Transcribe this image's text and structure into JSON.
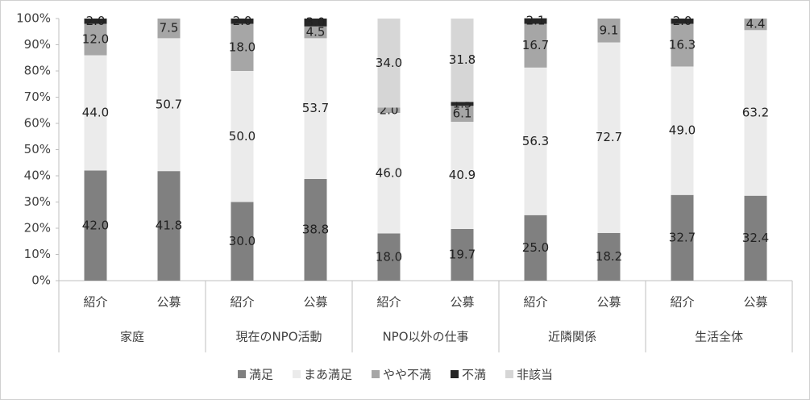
{
  "chart_data": {
    "type": "stacked-bar",
    "categories": [
      "紹介",
      "公募",
      "紹介",
      "公募",
      "紹介",
      "公募",
      "紹介",
      "公募",
      "紹介",
      "公募"
    ],
    "groups": [
      "家庭",
      "現在のNPO活動",
      "NPO以外の仕事",
      "近隣関係",
      "生活全体"
    ],
    "series": [
      {
        "name": "満足",
        "color": "#808080",
        "values": [
          42.0,
          41.8,
          30.0,
          38.8,
          18.0,
          19.7,
          25.0,
          18.2,
          32.7,
          32.4
        ],
        "value_labels": [
          "42.0",
          "41.8",
          "30.0",
          "38.8",
          "18.0",
          "19.7",
          "25.0",
          "18.2",
          "32.7",
          "32.4"
        ]
      },
      {
        "name": "まあ満足",
        "color": "#ebebeb",
        "values": [
          44.0,
          50.7,
          50.0,
          53.7,
          46.0,
          40.9,
          56.3,
          72.7,
          49.0,
          63.2
        ],
        "value_labels": [
          "44.0",
          "50.7",
          "50.0",
          "53.7",
          "46.0",
          "40.9",
          "56.3",
          "72.7",
          "49.0",
          "63.2"
        ]
      },
      {
        "name": "やや不満",
        "color": "#a6a6a6",
        "values": [
          12.0,
          7.5,
          18.0,
          4.5,
          2.0,
          6.1,
          16.7,
          9.1,
          16.3,
          4.4
        ],
        "value_labels": [
          "12.0",
          "7.5",
          "18.0",
          "4.5",
          "2.0",
          "6.1",
          "16.7",
          "9.1",
          "16.3",
          "4.4"
        ]
      },
      {
        "name": "不満",
        "color": "#262626",
        "values": [
          2.0,
          null,
          2.0,
          3.0,
          null,
          1.5,
          2.1,
          null,
          2.0,
          null
        ],
        "value_labels": [
          "2.0",
          null,
          "2.0",
          "3.0",
          null,
          "1.5",
          "2.1",
          null,
          "2.0",
          null
        ]
      },
      {
        "name": "非該当",
        "color": "#d6d6d6",
        "values": [
          null,
          null,
          null,
          null,
          34.0,
          31.8,
          null,
          null,
          null,
          null
        ],
        "value_labels": [
          null,
          null,
          null,
          null,
          "34.0",
          "31.8",
          null,
          null,
          null,
          null
        ]
      }
    ],
    "ylim": [
      0,
      100
    ],
    "yticks": [
      {
        "value": 0,
        "label": "0%"
      },
      {
        "value": 10,
        "label": "10%"
      },
      {
        "value": 20,
        "label": "20%"
      },
      {
        "value": 30,
        "label": "30%"
      },
      {
        "value": 40,
        "label": "40%"
      },
      {
        "value": 50,
        "label": "50%"
      },
      {
        "value": 60,
        "label": "60%"
      },
      {
        "value": 70,
        "label": "70%"
      },
      {
        "value": 80,
        "label": "80%"
      },
      {
        "value": 90,
        "label": "90%"
      },
      {
        "value": 100,
        "label": "100%"
      }
    ],
    "legend": "bottom"
  }
}
